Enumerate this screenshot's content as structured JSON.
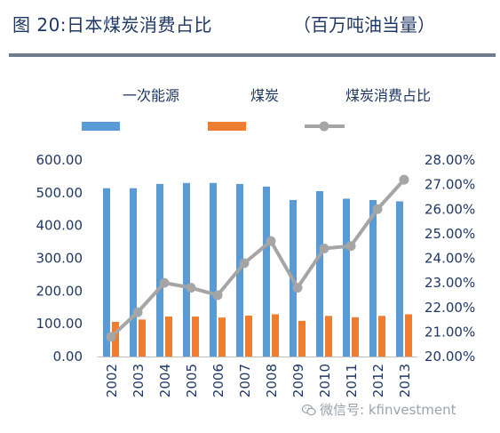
{
  "header": {
    "title": "图 20:日本煤炭消费占比",
    "unit": "（百万吨油当量）"
  },
  "watermark": {
    "text": "微信号: kfinvestment",
    "icon": "wechat-icon"
  },
  "colors": {
    "primary_energy": "#5b9bd5",
    "coal": "#ed7d31",
    "share": "#a5a5a5",
    "title": "#1f3864",
    "rule": "#6f7b8c"
  },
  "chart_data": {
    "type": "bar",
    "title": "图 20:日本煤炭消费占比",
    "categories": [
      "2002",
      "2003",
      "2004",
      "2005",
      "2006",
      "2007",
      "2008",
      "2009",
      "2010",
      "2011",
      "2012",
      "2013"
    ],
    "series": [
      {
        "name": "一次能源",
        "type": "bar",
        "axis": "left",
        "values": [
          514,
          514,
          527,
          530,
          530,
          527,
          519,
          478,
          505,
          482,
          478,
          474
        ]
      },
      {
        "name": "煤炭",
        "type": "bar",
        "axis": "left",
        "values": [
          106,
          113,
          122,
          122,
          119,
          125,
          129,
          109,
          124,
          120,
          124,
          129
        ]
      },
      {
        "name": "煤炭消费占比",
        "type": "line",
        "axis": "right",
        "values": [
          20.8,
          21.8,
          23.0,
          22.8,
          22.5,
          23.8,
          24.7,
          22.8,
          24.4,
          24.5,
          26.0,
          27.2
        ]
      }
    ],
    "y_left": {
      "min": 0,
      "max": 600,
      "ticks": [
        "0.00",
        "100.00",
        "200.00",
        "300.00",
        "400.00",
        "500.00",
        "600.00"
      ]
    },
    "y_right": {
      "min": 20,
      "max": 28,
      "ticks": [
        "20.00%",
        "21.00%",
        "22.00%",
        "23.00%",
        "24.00%",
        "25.00%",
        "26.00%",
        "27.00%",
        "28.00%"
      ]
    },
    "legend_position": "top",
    "grid": false
  }
}
